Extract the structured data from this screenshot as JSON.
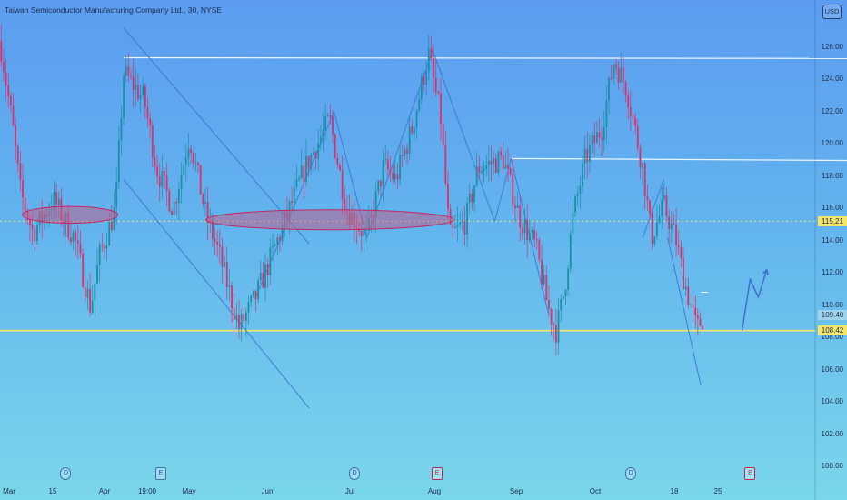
{
  "header": {
    "title": "Taiwan Semiconductor Manufacturing Company Ltd., 30, NYSE",
    "currency": "USD"
  },
  "colors": {
    "bg_top": "#5b9cf0",
    "bg_bottom": "#7ad6ea",
    "candle_up": "#1a8fa5",
    "candle_down": "#d6336c",
    "trendline": "#3d6fd0",
    "resistance": "#e8f6ff",
    "support": "#f5e66a",
    "ellipse_fill": "#c0608f"
  },
  "chart_data": {
    "type": "candlestick",
    "title": "Taiwan Semiconductor Manufacturing Company Ltd., 30, NYSE",
    "ylim": [
      100,
      127.6
    ],
    "y_ticks": [
      "126.00",
      "124.00",
      "122.00",
      "120.00",
      "118.00",
      "116.00",
      "114.00",
      "112.00",
      "110.00",
      "108.00",
      "106.00",
      "104.00",
      "102.00",
      "100.00"
    ],
    "x_ticks": [
      "Mar",
      "15",
      "Apr",
      "19:00",
      "May",
      "Jun",
      "Jul",
      "Aug",
      "Sep",
      "Oct",
      "18",
      "25"
    ],
    "price_labels": [
      {
        "label": "115.21",
        "value": 115.21,
        "color": "#f5e66a"
      },
      {
        "label": "109.40",
        "value": 109.4,
        "color": "#9fd3ec"
      },
      {
        "label": "108.42",
        "value": 108.42,
        "color": "#f5e66a"
      }
    ],
    "price_path": [
      {
        "t": 0.0,
        "p": 126.4
      },
      {
        "t": 3.2,
        "p": 121.2
      },
      {
        "t": 5.3,
        "p": 117.0
      },
      {
        "t": 8.5,
        "p": 114.5
      },
      {
        "t": 13.8,
        "p": 116.5
      },
      {
        "t": 19.2,
        "p": 114.2
      },
      {
        "t": 23.4,
        "p": 109.8
      },
      {
        "t": 25.6,
        "p": 113.0
      },
      {
        "t": 29.8,
        "p": 116.0
      },
      {
        "t": 31.9,
        "p": 124.4
      },
      {
        "t": 37.2,
        "p": 122.8
      },
      {
        "t": 40.4,
        "p": 118.5
      },
      {
        "t": 44.7,
        "p": 116.0
      },
      {
        "t": 48.9,
        "p": 120.5
      },
      {
        "t": 53.2,
        "p": 115.5
      },
      {
        "t": 56.4,
        "p": 113.3
      },
      {
        "t": 61.7,
        "p": 108.6
      },
      {
        "t": 66.0,
        "p": 110.5
      },
      {
        "t": 72.4,
        "p": 114.5
      },
      {
        "t": 78.7,
        "p": 118.5
      },
      {
        "t": 85.1,
        "p": 121.5
      },
      {
        "t": 89.4,
        "p": 116.0
      },
      {
        "t": 94.7,
        "p": 114.2
      },
      {
        "t": 99.0,
        "p": 118.6
      },
      {
        "t": 102.1,
        "p": 117.8
      },
      {
        "t": 106.4,
        "p": 121.0
      },
      {
        "t": 110.6,
        "p": 125.6
      },
      {
        "t": 113.8,
        "p": 121.5
      },
      {
        "t": 116.0,
        "p": 114.2
      },
      {
        "t": 120.2,
        "p": 115.2
      },
      {
        "t": 123.4,
        "p": 118.5
      },
      {
        "t": 129.8,
        "p": 119.1
      },
      {
        "t": 134.0,
        "p": 115.5
      },
      {
        "t": 138.3,
        "p": 113.6
      },
      {
        "t": 141.5,
        "p": 109.8
      },
      {
        "t": 143.6,
        "p": 108.4
      },
      {
        "t": 145.7,
        "p": 111.0
      },
      {
        "t": 147.9,
        "p": 115.5
      },
      {
        "t": 151.1,
        "p": 119.1
      },
      {
        "t": 155.3,
        "p": 121.0
      },
      {
        "t": 158.5,
        "p": 125.2
      },
      {
        "t": 161.7,
        "p": 123.5
      },
      {
        "t": 163.8,
        "p": 121.0
      },
      {
        "t": 165.9,
        "p": 118.5
      },
      {
        "t": 168.1,
        "p": 114.2
      },
      {
        "t": 171.3,
        "p": 116.2
      },
      {
        "t": 174.5,
        "p": 114.0
      },
      {
        "t": 176.6,
        "p": 111.5
      },
      {
        "t": 179.8,
        "p": 108.5
      },
      {
        "t": 181.9,
        "p": 109.4
      }
    ],
    "annotations": {
      "resistance_lines": [
        {
          "t1": 31.9,
          "t2": 240.0,
          "p1": 125.35,
          "p2": 125.3
        },
        {
          "t1": 131.9,
          "t2": 240.0,
          "p1": 119.1,
          "p2": 118.95
        }
      ],
      "support_line": {
        "p": 108.42
      },
      "trendlines": [
        {
          "t1": 31.9,
          "p1": 127.2,
          "t2": 79.8,
          "p2": 113.8
        },
        {
          "t1": 31.9,
          "p1": 117.8,
          "t2": 79.8,
          "p2": 103.6
        },
        {
          "t1": 66.0,
          "p1": 110.5,
          "t2": 86.2,
          "p2": 122.0
        },
        {
          "t1": 86.2,
          "p1": 122.0,
          "t2": 94.7,
          "p2": 114.2
        },
        {
          "t1": 94.7,
          "p1": 114.2,
          "t2": 111.7,
          "p2": 125.8
        },
        {
          "t1": 111.7,
          "p1": 125.8,
          "t2": 127.7,
          "p2": 115.2
        },
        {
          "t1": 127.7,
          "p1": 115.2,
          "t2": 131.9,
          "p2": 119.1
        },
        {
          "t1": 131.9,
          "p1": 119.1,
          "t2": 141.5,
          "p2": 109.5
        },
        {
          "t1": 165.9,
          "p1": 114.2,
          "t2": 171.3,
          "p2": 117.8
        },
        {
          "t1": 172.3,
          "p1": 114.2,
          "t2": 180.9,
          "p2": 105.0
        }
      ],
      "ellipses": [
        {
          "t": 18.1,
          "p": 115.6,
          "rt": 12.3,
          "rp": 0.52
        },
        {
          "t": 85.1,
          "p": 115.3,
          "rt": 32.0,
          "rp": 0.62
        }
      ],
      "projection_arrow": [
        {
          "t": 191.5,
          "p": 108.4
        },
        {
          "t": 193.6,
          "p": 111.6
        },
        {
          "t": 195.7,
          "p": 110.5
        },
        {
          "t": 197.9,
          "p": 112.2
        }
      ],
      "small_tick": {
        "t1": 180.9,
        "t2": 182.6,
        "p": 110.8
      }
    },
    "events": [
      {
        "t": 17.0,
        "icon": "D",
        "kind": "dividend"
      },
      {
        "t": 41.5,
        "icon": "E",
        "kind": "earnings"
      },
      {
        "t": 91.5,
        "icon": "D",
        "kind": "dividend"
      },
      {
        "t": 112.8,
        "icon": "E",
        "kind": "earnings-red"
      },
      {
        "t": 162.8,
        "icon": "D",
        "kind": "dividend"
      },
      {
        "t": 193.6,
        "icon": "E",
        "kind": "earnings-upcoming"
      }
    ]
  }
}
